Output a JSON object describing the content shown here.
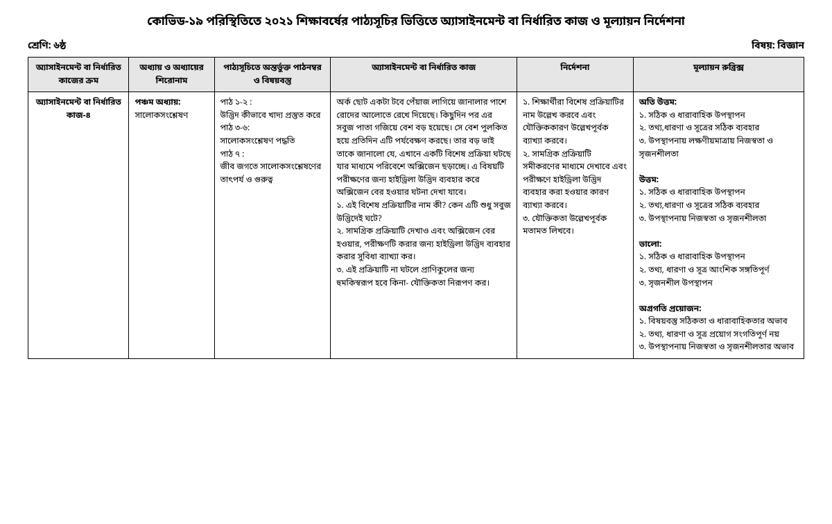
{
  "title": "কোভিড-১৯ পরিস্থিতিতে ২০২১ শিক্ষাবর্ষের পাঠ্যসূচির ভিত্তিতে অ্যাসাইনমেন্ট বা নির্ধারিত কাজ ও মূল্যায়ন নির্দেশনা",
  "class_label": "শ্রেণি: ৬ষ্ঠ",
  "subject_label": "বিষয়: বিজ্ঞান",
  "headers": {
    "h1": "অ্যাসাইনমেন্ট বা নির্ধারিত কাজের ক্রম",
    "h2": "অধ্যায় ও অধ্যায়ের শিরোনাম",
    "h3": "পাঠ্যসূচিতে অন্তর্ভুক্ত পাঠনম্বর ও বিষয়বস্তু",
    "h4": "অ্যাসাইনমেন্ট বা নির্ধারিত কাজ",
    "h5": "নির্দেশনা",
    "h6": "মূল্যায়ন রুব্রিক্স"
  },
  "row": {
    "assignment_no": "অ্যাসাইনমেন্ট বা নির্ধারিত কাজ-৪",
    "chapter_title": "পঞ্চম অধ্যায়:",
    "chapter_name": "সালোকসংশ্লেষণ",
    "lessons_l1": "পাঠ ১-২ :",
    "lessons_l2": "উদ্ভিদ কীভাবে খাদ্য প্রস্তুত করে",
    "lessons_l3": "পাঠ ৩-৬:",
    "lessons_l4": "সালোকসংশ্লেষণ পদ্ধতি",
    "lessons_l5": "পাঠ ৭ :",
    "lessons_l6": "জীব জগতে সালোকসংশ্লেষণের তাৎপর্য ও গুরুত্ব",
    "task_p1": "অর্ক ছোট একটা টবে পেঁয়াজ লাগিয়ে জানালার পাশে রোদের আলোতে রেখে দিয়েছে। কিছুদিন পর এর সবুজ পাতা গজিয়ে বেশ বড় হয়েছে। সে বেশ পুলকিত হয়ে প্রতিদিন এটি পর্যবেক্ষণ করছে। তার বড় ভাই তাকে জানালো যে, এখানে একটি বিশেষ প্রক্রিয়া ঘটছে যার মাধ্যমে পরিবেশে অক্সিজেন ছড়াচ্ছে। এ বিষয়টি পরীক্ষণের জন্য হাইড্রিলা উদ্ভিদ ব্যবহার করে অক্সিজেন বের হওয়ার ঘটনা দেখা যাবে।",
    "task_q1": "১. এই বিশেষ প্রক্রিয়াটির নাম কী? কেন এটি শুধু সবুজ উদ্ভিদেই ঘটে?",
    "task_q2": "২. সামগ্রিক প্রক্রিয়াটি দেখাও এবং অক্সিজেন বের হওয়ার, পরীক্ষণটি করার জন্য হাইড্রিলা উদ্ভিদ ব্যবহার করার সুবিধা ব্যাখ্যা কর।",
    "task_q3": "৩. এই প্রক্রিয়াটি না ঘটলে প্রাণিকুলের জন্য হুমকিস্বরূপ হবে কিনা- যৌক্তিকতা নিরূপণ কর।",
    "guide_1": "১. শিক্ষার্থীরা বিশেষ প্রক্রিয়াটির নাম উল্লেখ করবে এবং যৌক্তিককারণ উল্লেখপূর্বক ব্যাখ্যা করবে।",
    "guide_2": "২. সামগ্রিক প্রক্রিয়াটি সমীকরণের মাধ্যমে দেখাবে এবং পরীক্ষণে হাইড্রিলা উদ্ভিদ ব্যবহার করা হওয়ার কারণ ব্যাখ্যা করবে।",
    "guide_3": "৩. যৌক্তিকতা উল্লেখপূর্বক মতামত লিখবে।",
    "rub1_t": "অতি উত্তম:",
    "rub1_1": "১. সঠিক ও ধারাবাহিক উপস্থাপন",
    "rub1_2": "২. তথ্য,ধারণা ও সূত্রের সঠিক ব্যবহার",
    "rub1_3": "৩. উপস্থাপনায় লক্ষণীয়মাত্রায় নিজস্বতা ও সৃজনশীলতা",
    "rub2_t": "উত্তম:",
    "rub2_1": "১. সঠিক ও ধারাবাহিক উপস্থাপন",
    "rub2_2": "২. তথ্য,ধারণা ও সূত্রের সঠিক ব্যবহার",
    "rub2_3": "৩. উপস্থাপনায় নিজস্বতা ও সৃজনশীলতা",
    "rub3_t": "ভালো:",
    "rub3_1": "১. সঠিক ও ধারাবাহিক উপস্থাপন",
    "rub3_2": "২. তথ্য, ধারণা ও সূত্র আংশিক সঙ্গতিপূর্ণ",
    "rub3_3": "৩. সৃজনশীল উপস্থাপন",
    "rub4_t": "অগ্রগতি প্রয়োজন:",
    "rub4_1": "১. বিষয়বস্তু সঠিকতা ও ধারাবাহিকতার অভাব",
    "rub4_2": "২. তথ্য, ধারণা ও সূত্র প্রয়োগ সংগতিপূর্ণ নয়",
    "rub4_3": "৩. উপস্থাপনায় নিজস্বতা ও সৃজনশীলতার অভাব"
  }
}
